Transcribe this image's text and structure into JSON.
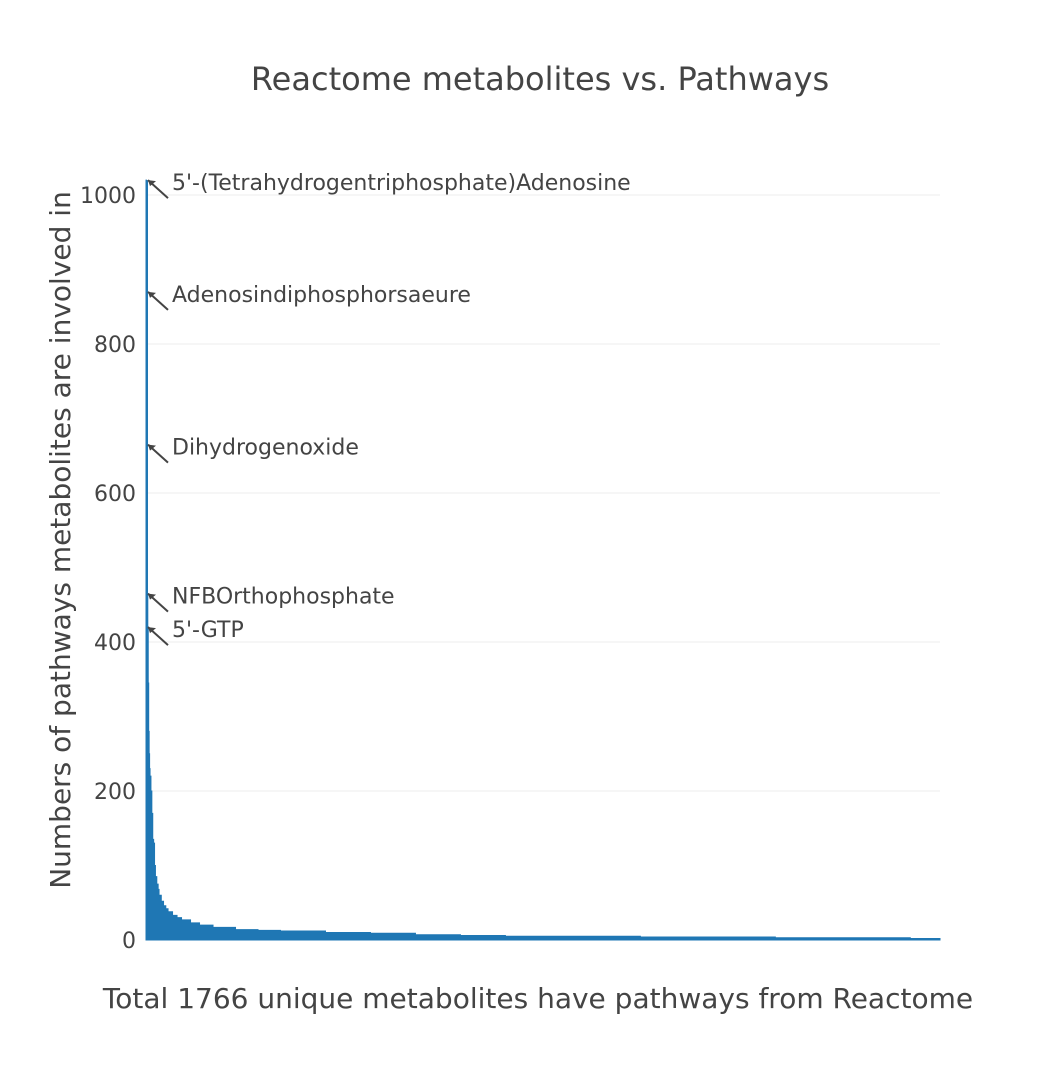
{
  "chart_data": {
    "type": "area",
    "title": "Reactome metabolites vs. Pathways",
    "xlabel": "Total 1766 unique metabolites have pathways from Reactome",
    "ylabel": "Numbers of pathways metabolites are involved in",
    "x_count": 1766,
    "ylim": [
      0,
      1020
    ],
    "yticks": [
      0,
      200,
      400,
      600,
      800,
      1000
    ],
    "grid": true,
    "fill_color": "#1f77b4",
    "series": [
      {
        "x": [
          1,
          2,
          3,
          4,
          5,
          6,
          7,
          8,
          9,
          10,
          12,
          14,
          16,
          18,
          20,
          22,
          25,
          28,
          30,
          35,
          40,
          45,
          50,
          60,
          70,
          80,
          100,
          120,
          150,
          200,
          250,
          300,
          400,
          500,
          600,
          700,
          800,
          900,
          1000,
          1100,
          1200,
          1300,
          1400,
          1500,
          1600,
          1700,
          1766
        ],
        "y": [
          1020,
          870,
          665,
          465,
          420,
          345,
          280,
          250,
          230,
          220,
          200,
          170,
          135,
          130,
          100,
          85,
          75,
          68,
          60,
          52,
          46,
          42,
          38,
          33,
          30,
          27,
          23,
          20,
          17,
          14,
          13,
          12,
          10,
          9,
          7,
          6,
          5,
          5,
          5,
          4,
          4,
          4,
          3,
          3,
          3,
          2,
          2
        ]
      }
    ],
    "annotations": [
      {
        "text": "5'-(Tetrahydrogentriphosphate)Adenosine",
        "x": 1,
        "y": 1020
      },
      {
        "text": "Adenosindiphosphorsaeure",
        "x": 2,
        "y": 870
      },
      {
        "text": "Dihydrogenoxide",
        "x": 3,
        "y": 665
      },
      {
        "text": "NFBOrthophosphate",
        "x": 4,
        "y": 465
      },
      {
        "text": "5'-GTP",
        "x": 5,
        "y": 420
      }
    ]
  }
}
